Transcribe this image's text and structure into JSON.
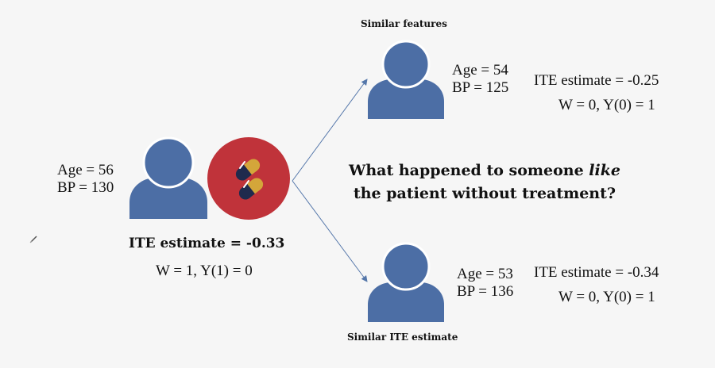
{
  "colors": {
    "person": "#4c6ea5",
    "pill_circle": "#c0333a",
    "capsule_gold": "#d4a63a",
    "capsule_navy": "#1f2a4d",
    "arrow": "#5577aa"
  },
  "icons": [
    "person-icon",
    "pill-capsule-icon",
    "pencil-cursor-icon"
  ],
  "patient": {
    "age": "Age = 56",
    "bp": "BP = 130",
    "ite": "ITE estimate = -0.33",
    "outcome": "W = 1, Y(1) = 0"
  },
  "question": {
    "prefix": "What happened to someone ",
    "emphasis": "like",
    "line2": "the patient without treatment?"
  },
  "similar_features": {
    "heading": "Similar features",
    "age": "Age = 54",
    "bp": "BP = 125",
    "ite": "ITE estimate = -0.25",
    "outcome": "W = 0, Y(0) = 1"
  },
  "similar_ite": {
    "heading": "Similar ITE estimate",
    "age": "Age = 53",
    "bp": "BP = 136",
    "ite": "ITE estimate = -0.34",
    "outcome": "W = 0, Y(0) = 1"
  }
}
